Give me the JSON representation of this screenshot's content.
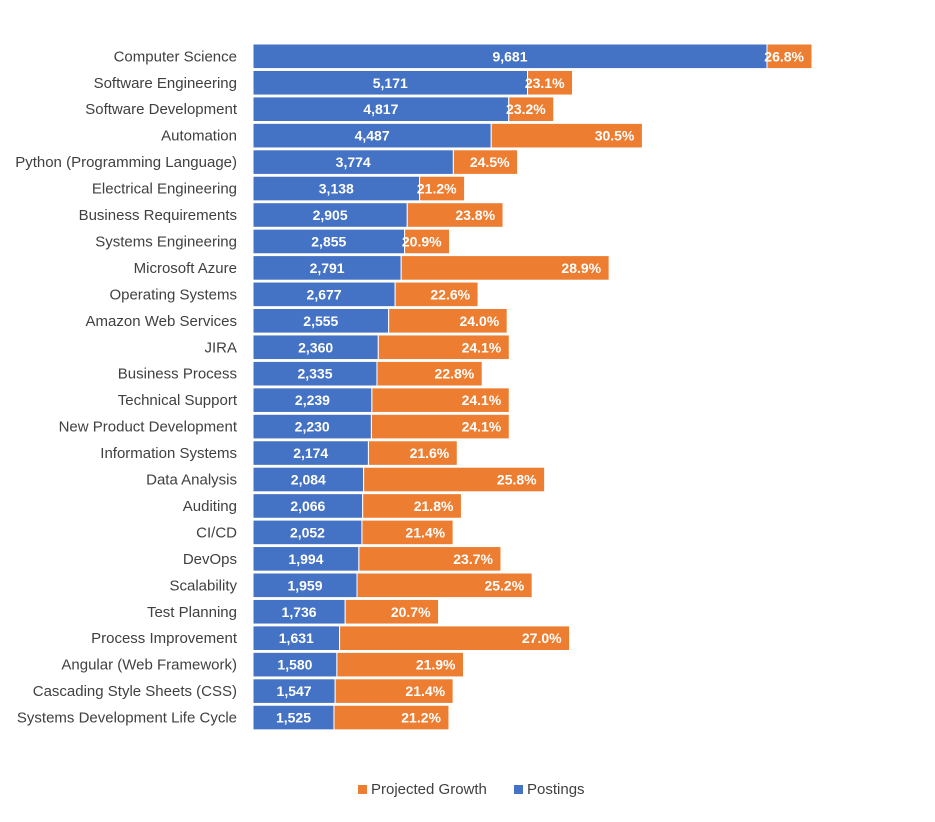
{
  "chart_data": {
    "type": "bar",
    "orientation": "horizontal",
    "stacked": true,
    "categories": [
      "Computer Science",
      "Software Engineering",
      "Software Development",
      "Automation",
      "Python (Programming Language)",
      "Electrical Engineering",
      "Business Requirements",
      "Systems Engineering",
      "Microsoft Azure",
      "Operating Systems",
      "Amazon Web Services",
      "JIRA",
      "Business Process",
      "Technical Support",
      "New Product Development",
      "Information Systems",
      "Data Analysis",
      "Auditing",
      "CI/CD",
      "DevOps",
      "Scalability",
      "Test Planning",
      "Process Improvement",
      "Angular (Web Framework)",
      "Cascading Style Sheets (CSS)",
      "Systems Development Life Cycle"
    ],
    "series": [
      {
        "name": "Postings",
        "color": "#4472C4",
        "values": [
          9681,
          5171,
          4817,
          4487,
          3774,
          3138,
          2905,
          2855,
          2791,
          2677,
          2555,
          2360,
          2335,
          2239,
          2230,
          2174,
          2084,
          2066,
          2052,
          1994,
          1959,
          1736,
          1631,
          1580,
          1547,
          1525
        ],
        "labels": [
          "9,681",
          "5,171",
          "4,817",
          "4,487",
          "3,774",
          "3,138",
          "2,905",
          "2,855",
          "2,791",
          "2,677",
          "2,555",
          "2,360",
          "2,335",
          "2,239",
          "2,230",
          "2,174",
          "2,084",
          "2,066",
          "2,052",
          "1,994",
          "1,959",
          "1,736",
          "1,631",
          "1,580",
          "1,547",
          "1,525"
        ]
      },
      {
        "name": "Projected Growth",
        "color": "#ED7D31",
        "values": [
          26.8,
          23.1,
          23.2,
          30.5,
          24.5,
          21.2,
          23.8,
          20.9,
          28.9,
          22.6,
          24.0,
          24.1,
          22.8,
          24.1,
          24.1,
          21.6,
          25.8,
          21.8,
          21.4,
          23.7,
          25.2,
          20.7,
          27.0,
          21.9,
          21.4,
          21.2
        ],
        "labels": [
          "26.8%",
          "23.1%",
          "23.2%",
          "30.5%",
          "24.5%",
          "21.2%",
          "23.8%",
          "20.9%",
          "28.9%",
          "22.6%",
          "24.0%",
          "24.1%",
          "22.8%",
          "24.1%",
          "24.1%",
          "21.6%",
          "25.8%",
          "21.8%",
          "21.4%",
          "23.7%",
          "25.2%",
          "20.7%",
          "27.0%",
          "21.9%",
          "21.4%",
          "21.2%"
        ]
      }
    ],
    "title": "",
    "xlabel": "",
    "ylabel": "",
    "grid": false,
    "legend": "bottom-center",
    "legend_order": [
      "Projected Growth",
      "Postings"
    ]
  }
}
